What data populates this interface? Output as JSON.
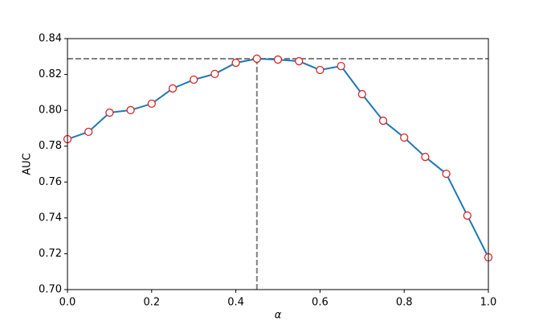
{
  "chart_data": {
    "type": "line",
    "xlabel": "α",
    "ylabel": "AUC",
    "x": [
      0,
      0.05,
      0.1,
      0.15,
      0.2,
      0.25,
      0.3,
      0.35,
      0.4,
      0.45,
      0.5,
      0.55,
      0.6,
      0.65,
      0.7,
      0.75,
      0.8,
      0.85,
      0.9,
      0.95,
      1.0
    ],
    "series": [
      {
        "color": "#1f77b4",
        "marker_edge": "#d62728",
        "values": [
          0.7839,
          0.788,
          0.7987,
          0.8001,
          0.8037,
          0.8122,
          0.8171,
          0.8203,
          0.8265,
          0.8288,
          0.8283,
          0.8274,
          0.8225,
          0.8247,
          0.809,
          0.7942,
          0.7848,
          0.774,
          0.7646,
          0.7413,
          0.718
        ]
      }
    ],
    "reference_lines": {
      "y": 0.8288,
      "x": 0.45,
      "color": "#808080"
    },
    "xlim": [
      0,
      1
    ],
    "ylim": [
      0.7,
      0.84
    ],
    "xticks": [
      {
        "value": 0,
        "label": "0.0"
      },
      0.2,
      0.4,
      0.6,
      0.8,
      {
        "value": 1,
        "label": "1.0"
      }
    ],
    "yticks": [
      {
        "value": 0.7,
        "label": "0.70"
      },
      0.72,
      0.74,
      0.76,
      0.78,
      {
        "value": 0.8,
        "label": "0.80"
      },
      0.82,
      0.84
    ]
  }
}
